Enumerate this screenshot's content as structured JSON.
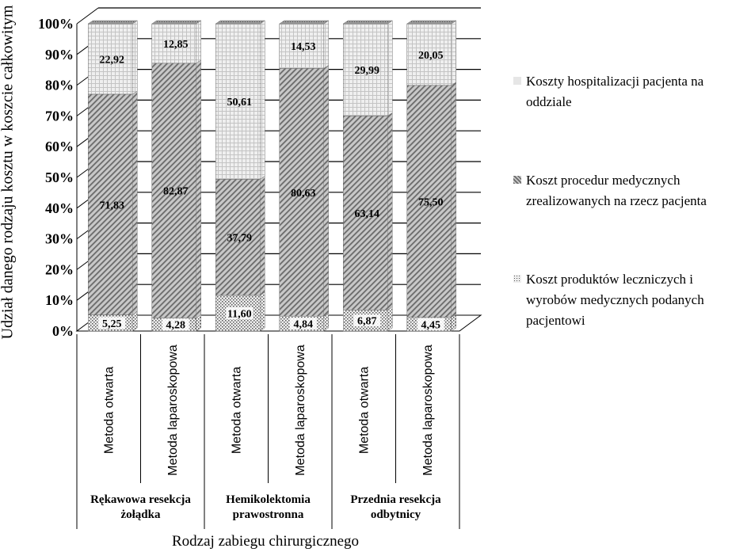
{
  "chart_data": {
    "type": "bar",
    "stacked": true,
    "three_d": true,
    "categories": [
      "Metoda otwarta",
      "Metoda laparoskopowa",
      "Metoda otwarta",
      "Metoda laparoskopowa",
      "Metoda otwarta",
      "Metoda laparoskopowa"
    ],
    "groups": [
      {
        "label": "Rękawowa resekcja żołądka",
        "span": 2
      },
      {
        "label": "Hemikolektomia prawostronna",
        "span": 2
      },
      {
        "label": "Przednia resekcja odbytnicy",
        "span": 2
      }
    ],
    "series": [
      {
        "name": "Koszt produktów leczniczych i wyrobów medycznych podanych pacjentowi",
        "values": [
          5.25,
          4.28,
          11.6,
          4.84,
          6.87,
          4.45
        ],
        "labels": [
          "5,25",
          "4,28",
          "11,60",
          "4,84",
          "6,87",
          "4,45"
        ],
        "pattern": "dots",
        "color": "#d9d9d9"
      },
      {
        "name": "Koszt procedur medycznych zrealizowanych na rzecz pacjenta",
        "values": [
          71.83,
          82.87,
          37.79,
          80.63,
          63.14,
          75.5
        ],
        "labels": [
          "71,83",
          "82,87",
          "37,79",
          "80,63",
          "63,14",
          "75,50"
        ],
        "pattern": "diagonal",
        "color": "#bfbfbf"
      },
      {
        "name": "Koszty hospitalizacji pacjenta na oddziale",
        "values": [
          22.92,
          12.85,
          50.61,
          14.53,
          29.99,
          20.05
        ],
        "labels": [
          "22,92",
          "12,85",
          "50,61",
          "14,53",
          "29,99",
          "20,05"
        ],
        "pattern": "grid",
        "color": "#ececec"
      }
    ],
    "legend_order": [
      2,
      1,
      0
    ],
    "yticks": [
      "0%",
      "10%",
      "20%",
      "30%",
      "40%",
      "50%",
      "60%",
      "70%",
      "80%",
      "90%",
      "100%"
    ],
    "ylim": [
      0,
      100
    ],
    "ylabel": "Udział danego rodzaju kosztu w koszcie całkowitym [%]",
    "xlabel": "Rodzaj zabiegu chirurgicznego",
    "grid": true,
    "legend_position": "right"
  }
}
